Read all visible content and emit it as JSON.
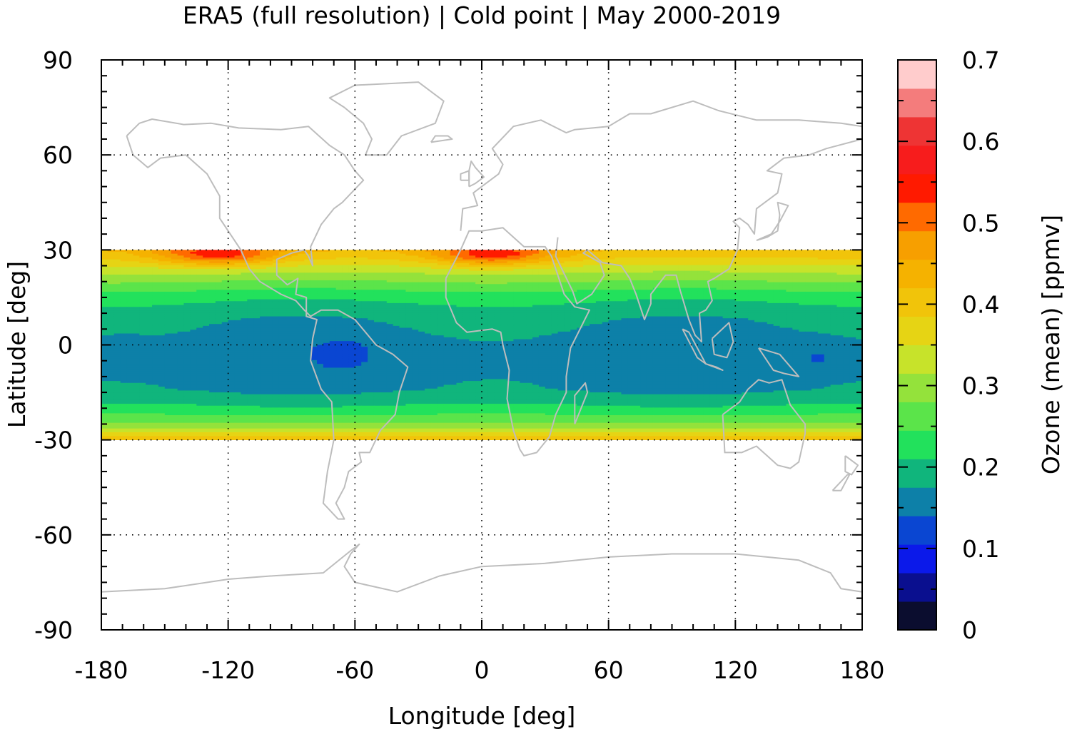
{
  "chart_data": {
    "type": "heatmap",
    "title": "ERA5 (full resolution) | Cold point | May 2000-2019",
    "xlabel": "Longitude [deg]",
    "ylabel": "Latitude [deg]",
    "xlim": [
      -180,
      180
    ],
    "ylim": [
      -90,
      90
    ],
    "xticks": [
      "-180",
      "-120",
      "-60",
      "0",
      "60",
      "120",
      "180"
    ],
    "yticks": [
      "90",
      "60",
      "30",
      "0",
      "-30",
      "-60",
      "-90"
    ],
    "grid": true,
    "data_lat_range": [
      -30,
      30
    ],
    "colorbar": {
      "label": "Ozone (mean) [ppmv]",
      "range": [
        0,
        0.7
      ],
      "ticks": [
        "0",
        "0.1",
        "0.2",
        "0.3",
        "0.4",
        "0.5",
        "0.6",
        "0.7"
      ],
      "levels": [
        {
          "min": 0.0,
          "max": 0.035,
          "color": "#0b0d2f"
        },
        {
          "min": 0.035,
          "max": 0.07,
          "color": "#0a0f8f"
        },
        {
          "min": 0.07,
          "max": 0.105,
          "color": "#0b19ea"
        },
        {
          "min": 0.105,
          "max": 0.14,
          "color": "#0a46d2"
        },
        {
          "min": 0.14,
          "max": 0.175,
          "color": "#0d80a8"
        },
        {
          "min": 0.175,
          "max": 0.21,
          "color": "#10b57c"
        },
        {
          "min": 0.21,
          "max": 0.245,
          "color": "#22e15c"
        },
        {
          "min": 0.245,
          "max": 0.28,
          "color": "#5be44a"
        },
        {
          "min": 0.28,
          "max": 0.315,
          "color": "#94e23b"
        },
        {
          "min": 0.315,
          "max": 0.35,
          "color": "#c7e32a"
        },
        {
          "min": 0.35,
          "max": 0.385,
          "color": "#e6d414"
        },
        {
          "min": 0.385,
          "max": 0.42,
          "color": "#f1c40a"
        },
        {
          "min": 0.42,
          "max": 0.455,
          "color": "#f5b200"
        },
        {
          "min": 0.455,
          "max": 0.49,
          "color": "#f79f00"
        },
        {
          "min": 0.49,
          "max": 0.525,
          "color": "#ff6a00"
        },
        {
          "min": 0.525,
          "max": 0.56,
          "color": "#ff1a00"
        },
        {
          "min": 0.56,
          "max": 0.595,
          "color": "#f71c1c"
        },
        {
          "min": 0.595,
          "max": 0.63,
          "color": "#ee3434"
        },
        {
          "min": 0.63,
          "max": 0.665,
          "color": "#f47c7c"
        },
        {
          "min": 0.665,
          "max": 0.7,
          "color": "#ffcccc"
        }
      ]
    },
    "field": {
      "description_free": true,
      "zonal_profile": [
        {
          "lat": 30,
          "value": 0.42
        },
        {
          "lat": 27,
          "value": 0.38
        },
        {
          "lat": 24,
          "value": 0.33
        },
        {
          "lat": 20,
          "value": 0.28
        },
        {
          "lat": 16,
          "value": 0.23
        },
        {
          "lat": 12,
          "value": 0.2
        },
        {
          "lat": 8,
          "value": 0.18
        },
        {
          "lat": 0,
          "value": 0.16
        },
        {
          "lat": -8,
          "value": 0.16
        },
        {
          "lat": -14,
          "value": 0.17
        },
        {
          "lat": -18,
          "value": 0.2
        },
        {
          "lat": -21,
          "value": 0.23
        },
        {
          "lat": -24,
          "value": 0.27
        },
        {
          "lat": -26,
          "value": 0.31
        },
        {
          "lat": -28,
          "value": 0.36
        },
        {
          "lat": -30,
          "value": 0.41
        }
      ],
      "maxima": [
        {
          "lon": -125,
          "lat": 29,
          "value": 0.55
        },
        {
          "lon": 5,
          "lat": 29,
          "value": 0.55
        }
      ],
      "minima": [
        {
          "lon": -170,
          "lat": -3,
          "value": 0.13
        },
        {
          "lon": -65,
          "lat": -3,
          "value": 0.13
        },
        {
          "lon": 160,
          "lat": -4,
          "value": 0.13
        }
      ]
    }
  }
}
